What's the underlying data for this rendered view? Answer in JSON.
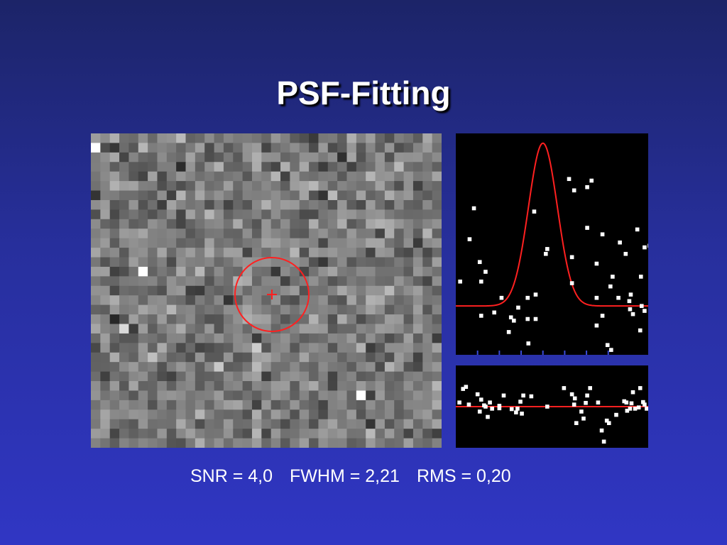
{
  "slide": {
    "title": "PSF-Fitting",
    "stats": {
      "snr": "SNR = 4,0",
      "fwhm": "FWHM = 2,21",
      "rms": "RMS = 0,20"
    }
  },
  "colors": {
    "background_top": "#1c2468",
    "background_bottom": "#3036c4",
    "fit_curve": "#ff2020",
    "points": "#ffffff",
    "plot_background": "#000000",
    "tick": "#3a4bd8"
  },
  "chart_data": [
    {
      "type": "heatmap",
      "grid": {
        "columns": 37,
        "rows": 33
      },
      "colormap": "grayscale",
      "marker": {
        "shape": "circle-with-crosshair",
        "color": "#ff2020"
      },
      "bright_pixels": [
        {
          "col": 0,
          "row": 1,
          "value": 1.0
        },
        {
          "col": 5,
          "row": 14,
          "value": 1.0
        },
        {
          "col": 28,
          "row": 27,
          "value": 1.0
        },
        {
          "col": 3,
          "row": 20,
          "value": 0.85
        }
      ]
    },
    {
      "type": "scatter",
      "series": [
        {
          "kind": "points",
          "x": [
            0.6,
            3.3,
            4.1,
            6.3,
            7.6,
            5.3,
            9.9,
            8.0,
            10.0,
            11.0,
            15.6,
            18.1,
            18.7,
            21.6,
            26.0,
            20.2,
            18.1,
            22.6,
            23.4,
            21.3,
            24.0,
            23.9,
            24.1,
            24.4,
            19.4,
            16.0,
            12.4,
            12.6,
            9.9,
            7.3,
            8.6,
            11.0,
            2.5,
            1.9,
            3.5,
            3.5,
            10.8,
            16.3,
            16.0,
            19.4,
            20.9,
            25.6,
            26.0,
            25.4,
            25.5,
            26.7,
            25.0,
            22.4,
            20.2,
            21.4,
            19.4
          ],
          "y": [
            0.15,
            0.27,
            0.21,
            0.05,
            -0.07,
            -0.04,
            -0.08,
            -0.09,
            -0.23,
            0.07,
            0.78,
            0.73,
            0.77,
            0.18,
            0.36,
            0.44,
            0.48,
            0.39,
            0.32,
            0.12,
            -0.02,
            0.03,
            0.07,
            -0.05,
            0.26,
            0.3,
            0.32,
            0.35,
            0.05,
            -0.16,
            -0.01,
            -0.08,
            0.6,
            0.41,
            0.15,
            -0.06,
            0.58,
            0.71,
            0.14,
            -0.12,
            -0.24,
            0.0,
            -0.03,
            -0.15,
            0.18,
            0.37,
            0.47,
            0.05,
            -0.06,
            -0.27,
            0.05
          ],
          "color": "#ffffff"
        },
        {
          "kind": "fit",
          "model": "gaussian",
          "amplitude": 1.0,
          "center": 12.0,
          "fwhm": 4.7,
          "color": "#ff2020"
        }
      ],
      "xlim": [
        0,
        26.5
      ],
      "ylim": [
        -0.3,
        1.06
      ],
      "x_ticks": [
        3,
        6,
        9,
        12,
        15,
        18,
        21
      ]
    },
    {
      "type": "scatter",
      "series": [
        {
          "kind": "points",
          "x": [
            0.5,
            1.0,
            1.4,
            1.8,
            3.0,
            3.5,
            3.9,
            3.3,
            4.1,
            4.7,
            4.4,
            5.0,
            6.0,
            6.6,
            7.7,
            8.3,
            9.3,
            8.5,
            9.1,
            12.6,
            16.6,
            17.6,
            17.3,
            20.1,
            20.4,
            20.8,
            21.1,
            22.1,
            23.6,
            24.0,
            23.5,
            24.4,
            23.2,
            24.7,
            25.2,
            25.8,
            26.0,
            26.3,
            25.4,
            24.2,
            19.6,
            18.5,
            18.1,
            17.9,
            16.3,
            16.4,
            16.0,
            14.9,
            10.4,
            8.9,
            6.0
          ],
          "y": [
            0.1,
            0.43,
            0.48,
            0.05,
            0.3,
            0.17,
            0.03,
            -0.12,
            0.0,
            0.1,
            -0.25,
            -0.05,
            -0.04,
            0.27,
            -0.06,
            -0.14,
            0.27,
            -0.05,
            -0.17,
            0.0,
            -0.4,
            -0.29,
            -0.12,
            -0.58,
            -0.85,
            -0.34,
            -0.4,
            -0.2,
            -0.1,
            -0.05,
            0.1,
            0.35,
            0.13,
            -0.05,
            -0.02,
            0.11,
            0.05,
            -0.05,
            0.45,
            0.08,
            0.1,
            0.45,
            0.27,
            0.09,
            0.05,
            0.2,
            0.3,
            0.45,
            0.25,
            0.12,
            0.02
          ],
          "color": "#ffffff"
        },
        {
          "kind": "fit",
          "model": "constant",
          "value": 0.0,
          "color": "#ff2020"
        }
      ],
      "xlim": [
        0,
        26.5
      ],
      "ylim": [
        -1.0,
        1.0
      ]
    }
  ]
}
